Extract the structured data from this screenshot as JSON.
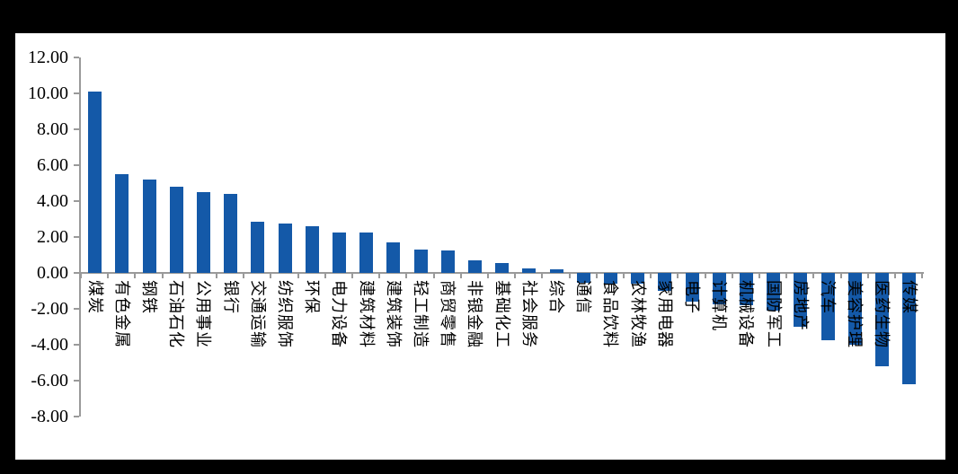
{
  "page": {
    "background_color": "#000000",
    "panel_color": "#ffffff"
  },
  "chart_data": {
    "type": "bar",
    "title": "",
    "xlabel": "",
    "ylabel": "",
    "grid": false,
    "legend": false,
    "bar_color": "#1459a8",
    "axis_color": "#9a9a9a",
    "ylim": [
      -8,
      12
    ],
    "ytick_step": 2,
    "ytick_labels": [
      "12.00",
      "10.00",
      "8.00",
      "6.00",
      "4.00",
      "2.00",
      "0.00",
      "-2.00",
      "-4.00",
      "-6.00",
      "-8.00"
    ],
    "categories": [
      "煤炭",
      "有色金属",
      "钢铁",
      "石油石化",
      "公用事业",
      "银行",
      "交通运输",
      "纺织服饰",
      "环保",
      "电力设备",
      "建筑材料",
      "建筑装饰",
      "轻工制造",
      "商贸零售",
      "非银金融",
      "基础化工",
      "社会服务",
      "综合",
      "通信",
      "食品饮料",
      "农林牧渔",
      "家用电器",
      "电子",
      "计算机",
      "机械设备",
      "国防军工",
      "房地产",
      "汽车",
      "美容护理",
      "医药生物",
      "传媒"
    ],
    "values": [
      10.1,
      5.5,
      5.2,
      4.8,
      4.5,
      4.4,
      2.85,
      2.75,
      2.6,
      2.25,
      2.25,
      1.7,
      1.3,
      1.25,
      0.7,
      0.55,
      0.25,
      0.2,
      -0.55,
      -0.6,
      -0.6,
      -1.0,
      -1.6,
      -1.75,
      -1.8,
      -2.1,
      -3.0,
      -3.75,
      -4.0,
      -5.2,
      -6.2
    ]
  }
}
